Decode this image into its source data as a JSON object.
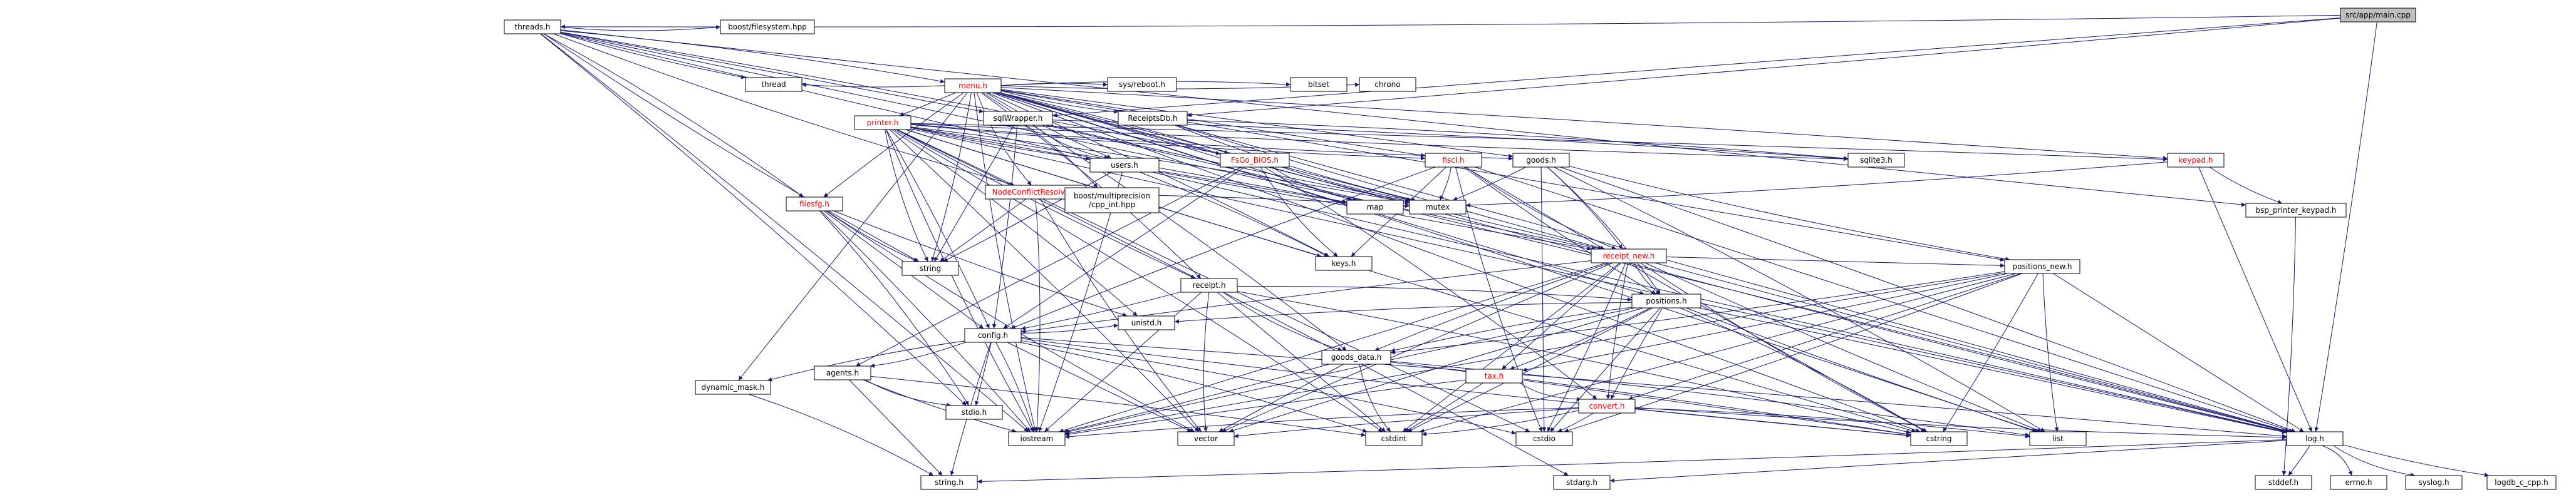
{
  "colors": {
    "edge": "#191970",
    "node_fill": "#ffffff",
    "root_fill": "#bfbfbf",
    "node_text": "#000000",
    "missing_text": "#ff0000",
    "external_border": "#bfbfbf"
  },
  "nodes": [
    {
      "id": "main",
      "label": "src/app/main.cpp",
      "kind": "root"
    },
    {
      "id": "threads",
      "label": "threads.h",
      "kind": "normal"
    },
    {
      "id": "menu",
      "label": "menu.h",
      "kind": "missing"
    },
    {
      "id": "receiptsdb",
      "label": "ReceiptsDb.h",
      "kind": "normal"
    },
    {
      "id": "sqlwrapper",
      "label": "sqlWrapper.h",
      "kind": "normal"
    },
    {
      "id": "printer",
      "label": "printer.h",
      "kind": "missing"
    },
    {
      "id": "fsgo",
      "label": "FsGo_BIOS.h",
      "kind": "missing"
    },
    {
      "id": "filesfg",
      "label": "filesfg.h",
      "kind": "missing"
    },
    {
      "id": "nodeconflict",
      "label": "NodeConflictResolver.h",
      "kind": "missing"
    },
    {
      "id": "users",
      "label": "users.h",
      "kind": "normal"
    },
    {
      "id": "fiscal",
      "label": "fiscl.h",
      "kind": "missing"
    },
    {
      "id": "goods",
      "label": "goods.h",
      "kind": "normal"
    },
    {
      "id": "keypad",
      "label": "keypad.h",
      "kind": "missing"
    },
    {
      "id": "bspkeypad",
      "label": "bsp_printer_keypad.h",
      "kind": "normal"
    },
    {
      "id": "receipt",
      "label": "receipt.h",
      "kind": "normal"
    },
    {
      "id": "receiptnew",
      "label": "receipt_new.h",
      "kind": "missing"
    },
    {
      "id": "positions",
      "label": "positions.h",
      "kind": "normal"
    },
    {
      "id": "positionsnew",
      "label": "positions_new.h",
      "kind": "normal"
    },
    {
      "id": "config",
      "label": "config.h",
      "kind": "normal"
    },
    {
      "id": "agents",
      "label": "agents.h",
      "kind": "normal"
    },
    {
      "id": "dynamicmask",
      "label": "dynamic_mask.h",
      "kind": "normal"
    },
    {
      "id": "goodsdata",
      "label": "goods_data.h",
      "kind": "normal"
    },
    {
      "id": "tax",
      "label": "tax.h",
      "kind": "missing"
    },
    {
      "id": "convert",
      "label": "convert.h",
      "kind": "missing"
    },
    {
      "id": "log",
      "label": "log.h",
      "kind": "normal"
    },
    {
      "id": "keys",
      "label": "keys.h",
      "kind": "normal"
    },
    {
      "id": "boostfs",
      "label": "boost/filesystem.hpp",
      "kind": "external"
    },
    {
      "id": "thread",
      "label": "thread",
      "kind": "external"
    },
    {
      "id": "sysreboot",
      "label": "sys/reboot.h",
      "kind": "external"
    },
    {
      "id": "bitset",
      "label": "bitset",
      "kind": "external"
    },
    {
      "id": "chrono",
      "label": "chrono",
      "kind": "external"
    },
    {
      "id": "boostmp",
      "label": [
        "boost/multiprecision",
        "/cpp_int.hpp"
      ],
      "kind": "external"
    },
    {
      "id": "sqlite3",
      "label": "sqlite3.h",
      "kind": "external"
    },
    {
      "id": "string",
      "label": "string",
      "kind": "external"
    },
    {
      "id": "map",
      "label": "map",
      "kind": "external"
    },
    {
      "id": "mutex",
      "label": "mutex",
      "kind": "external"
    },
    {
      "id": "unistd",
      "label": "unistd.h",
      "kind": "external"
    },
    {
      "id": "stdio",
      "label": "stdio.h",
      "kind": "external"
    },
    {
      "id": "iostream",
      "label": "iostream",
      "kind": "external"
    },
    {
      "id": "vector",
      "label": "vector",
      "kind": "external"
    },
    {
      "id": "cstdint",
      "label": "cstdint",
      "kind": "external"
    },
    {
      "id": "cstdio",
      "label": "cstdio",
      "kind": "external"
    },
    {
      "id": "cstring",
      "label": "cstring",
      "kind": "external"
    },
    {
      "id": "list",
      "label": "list",
      "kind": "external"
    },
    {
      "id": "stringh",
      "label": "string.h",
      "kind": "external"
    },
    {
      "id": "stdarg",
      "label": "stdarg.h",
      "kind": "external"
    },
    {
      "id": "stddef",
      "label": "stddef.h",
      "kind": "external"
    },
    {
      "id": "errno",
      "label": "errno.h",
      "kind": "external"
    },
    {
      "id": "syslog",
      "label": "syslog.h",
      "kind": "external"
    },
    {
      "id": "logdb",
      "label": "logdb_c_cpp.h",
      "kind": "external"
    }
  ],
  "edges": [
    [
      "main",
      "threads"
    ],
    [
      "main",
      "receiptsdb"
    ],
    [
      "main",
      "sqlwrapper"
    ],
    [
      "main",
      "log"
    ],
    [
      "threads",
      "menu"
    ],
    [
      "threads",
      "boostfs"
    ],
    [
      "threads",
      "thread"
    ],
    [
      "threads",
      "sqlwrapper"
    ],
    [
      "threads",
      "fsgo"
    ],
    [
      "threads",
      "filesfg"
    ],
    [
      "threads",
      "nodeconflict"
    ],
    [
      "threads",
      "bspkeypad"
    ],
    [
      "threads",
      "receiptnew"
    ],
    [
      "threads",
      "iostream"
    ],
    [
      "threads",
      "stdio"
    ],
    [
      "threads",
      "string"
    ],
    [
      "threads",
      "log"
    ],
    [
      "menu",
      "printer"
    ],
    [
      "menu",
      "sysreboot"
    ],
    [
      "menu",
      "bitset"
    ],
    [
      "menu",
      "chrono"
    ],
    [
      "menu",
      "receiptsdb"
    ],
    [
      "menu",
      "goods"
    ],
    [
      "menu",
      "keypad"
    ],
    [
      "menu",
      "receipt"
    ],
    [
      "menu",
      "receiptnew"
    ],
    [
      "menu",
      "positions"
    ],
    [
      "menu",
      "positionsnew"
    ],
    [
      "menu",
      "fsgo"
    ],
    [
      "menu",
      "filesfg"
    ],
    [
      "menu",
      "nodeconflict"
    ],
    [
      "menu",
      "users"
    ],
    [
      "menu",
      "fiscal"
    ],
    [
      "menu",
      "keys"
    ],
    [
      "menu",
      "goodsdata"
    ],
    [
      "menu",
      "log"
    ],
    [
      "menu",
      "thread"
    ],
    [
      "menu",
      "mutex"
    ],
    [
      "menu",
      "map"
    ],
    [
      "menu",
      "string"
    ],
    [
      "menu",
      "iostream"
    ],
    [
      "menu",
      "dynamicmask"
    ],
    [
      "menu",
      "cstring"
    ],
    [
      "menu",
      "list"
    ],
    [
      "receiptsdb",
      "sqlite3"
    ],
    [
      "receiptsdb",
      "mutex"
    ],
    [
      "receiptsdb",
      "receiptnew"
    ],
    [
      "receiptsdb",
      "log"
    ],
    [
      "sqlwrapper",
      "boostmp"
    ],
    [
      "sqlwrapper",
      "sqlite3"
    ],
    [
      "sqlwrapper",
      "users"
    ],
    [
      "sqlwrapper",
      "mutex"
    ],
    [
      "sqlwrapper",
      "string"
    ],
    [
      "sqlwrapper",
      "config"
    ],
    [
      "sqlwrapper",
      "log"
    ],
    [
      "printer",
      "fiscal"
    ],
    [
      "printer",
      "users"
    ],
    [
      "printer",
      "keys"
    ],
    [
      "printer",
      "map"
    ],
    [
      "printer",
      "mutex"
    ],
    [
      "printer",
      "string"
    ],
    [
      "printer",
      "receipt"
    ],
    [
      "printer",
      "receiptnew"
    ],
    [
      "printer",
      "config"
    ],
    [
      "printer",
      "cstdint"
    ],
    [
      "printer",
      "iostream"
    ],
    [
      "printer",
      "cstring"
    ],
    [
      "printer",
      "cstdio"
    ],
    [
      "printer",
      "vector"
    ],
    [
      "printer",
      "unistd"
    ],
    [
      "printer",
      "goods"
    ],
    [
      "printer",
      "sqlite3"
    ],
    [
      "printer",
      "log"
    ],
    [
      "printer",
      "keypad"
    ],
    [
      "printer",
      "stdarg"
    ],
    [
      "fsgo",
      "map"
    ],
    [
      "fsgo",
      "mutex"
    ],
    [
      "fsgo",
      "config"
    ],
    [
      "fsgo",
      "agents"
    ],
    [
      "fsgo",
      "convert"
    ],
    [
      "fsgo",
      "keys"
    ],
    [
      "filesfg",
      "string"
    ],
    [
      "filesfg",
      "config"
    ],
    [
      "filesfg",
      "iostream"
    ],
    [
      "filesfg",
      "stdio"
    ],
    [
      "filesfg",
      "vector"
    ],
    [
      "filesfg",
      "unistd"
    ],
    [
      "nodeconflict",
      "string"
    ],
    [
      "nodeconflict",
      "mutex"
    ],
    [
      "nodeconflict",
      "iostream"
    ],
    [
      "nodeconflict",
      "vector"
    ],
    [
      "users",
      "string"
    ],
    [
      "users",
      "map"
    ],
    [
      "users",
      "keys"
    ],
    [
      "users",
      "iostream"
    ],
    [
      "fiscal",
      "receiptnew"
    ],
    [
      "fiscal",
      "positions"
    ],
    [
      "fiscal",
      "keys"
    ],
    [
      "fiscal",
      "mutex"
    ],
    [
      "fiscal",
      "config"
    ],
    [
      "fiscal",
      "cstdio"
    ],
    [
      "fiscal",
      "cstring"
    ],
    [
      "fiscal",
      "log"
    ],
    [
      "goods",
      "receiptnew"
    ],
    [
      "goods",
      "positions"
    ],
    [
      "goods",
      "positionsnew"
    ],
    [
      "goods",
      "mutex"
    ],
    [
      "goods",
      "cstdio"
    ],
    [
      "goods",
      "log"
    ],
    [
      "goods",
      "list"
    ],
    [
      "keypad",
      "mutex"
    ],
    [
      "keypad",
      "bspkeypad"
    ],
    [
      "keypad",
      "log"
    ],
    [
      "bspkeypad",
      "stddef"
    ],
    [
      "receipt",
      "positions"
    ],
    [
      "receipt",
      "goodsdata"
    ],
    [
      "receipt",
      "config"
    ],
    [
      "receipt",
      "cstdint"
    ],
    [
      "receipt",
      "iostream"
    ],
    [
      "receipt",
      "cstring"
    ],
    [
      "receipt",
      "vector"
    ],
    [
      "receiptnew",
      "positions"
    ],
    [
      "receiptnew",
      "positionsnew"
    ],
    [
      "receiptnew",
      "config"
    ],
    [
      "receiptnew",
      "goodsdata"
    ],
    [
      "receiptnew",
      "tax"
    ],
    [
      "receiptnew",
      "convert"
    ],
    [
      "receiptnew",
      "iostream"
    ],
    [
      "receiptnew",
      "cstdint"
    ],
    [
      "receiptnew",
      "cstdio"
    ],
    [
      "receiptnew",
      "cstring"
    ],
    [
      "receiptnew",
      "list"
    ],
    [
      "receiptnew",
      "log"
    ],
    [
      "receiptnew",
      "vector"
    ],
    [
      "positions",
      "goodsdata"
    ],
    [
      "positions",
      "tax"
    ],
    [
      "positions",
      "convert"
    ],
    [
      "positions",
      "cstdint"
    ],
    [
      "positions",
      "iostream"
    ],
    [
      "positions",
      "cstring"
    ],
    [
      "positions",
      "cstdio"
    ],
    [
      "positions",
      "list"
    ],
    [
      "positions",
      "log"
    ],
    [
      "positions",
      "vector"
    ],
    [
      "positions",
      "unistd"
    ],
    [
      "positionsnew",
      "goodsdata"
    ],
    [
      "positionsnew",
      "tax"
    ],
    [
      "positionsnew",
      "convert"
    ],
    [
      "positionsnew",
      "cstdint"
    ],
    [
      "positionsnew",
      "cstring"
    ],
    [
      "positionsnew",
      "cstdio"
    ],
    [
      "positionsnew",
      "list"
    ],
    [
      "positionsnew",
      "log"
    ],
    [
      "positionsnew",
      "iostream"
    ],
    [
      "config",
      "dynamicmask"
    ],
    [
      "config",
      "agents"
    ],
    [
      "config",
      "unistd"
    ],
    [
      "config",
      "stdio"
    ],
    [
      "config",
      "iostream"
    ],
    [
      "config",
      "cstdint"
    ],
    [
      "config",
      "cstring"
    ],
    [
      "config",
      "stringh"
    ],
    [
      "config",
      "vector"
    ],
    [
      "config",
      "log"
    ],
    [
      "config",
      "cstdio"
    ],
    [
      "agents",
      "stdio"
    ],
    [
      "agents",
      "iostream"
    ],
    [
      "agents",
      "stringh"
    ],
    [
      "agents",
      "cstdint"
    ],
    [
      "dynamicmask",
      "stringh"
    ],
    [
      "goodsdata",
      "cstdint"
    ],
    [
      "goodsdata",
      "iostream"
    ],
    [
      "goodsdata",
      "vector"
    ],
    [
      "goodsdata",
      "cstring"
    ],
    [
      "goodsdata",
      "list"
    ],
    [
      "tax",
      "convert"
    ],
    [
      "tax",
      "cstdint"
    ],
    [
      "tax",
      "cstring"
    ],
    [
      "tax",
      "iostream"
    ],
    [
      "convert",
      "iostream"
    ],
    [
      "convert",
      "cstdint"
    ],
    [
      "convert",
      "cstdio"
    ],
    [
      "convert",
      "cstring"
    ],
    [
      "convert",
      "vector"
    ],
    [
      "convert",
      "list"
    ],
    [
      "convert",
      "log"
    ],
    [
      "log",
      "stringh"
    ],
    [
      "log",
      "stdarg"
    ],
    [
      "log",
      "stddef"
    ],
    [
      "log",
      "errno"
    ],
    [
      "log",
      "syslog"
    ],
    [
      "log",
      "logdb"
    ]
  ]
}
